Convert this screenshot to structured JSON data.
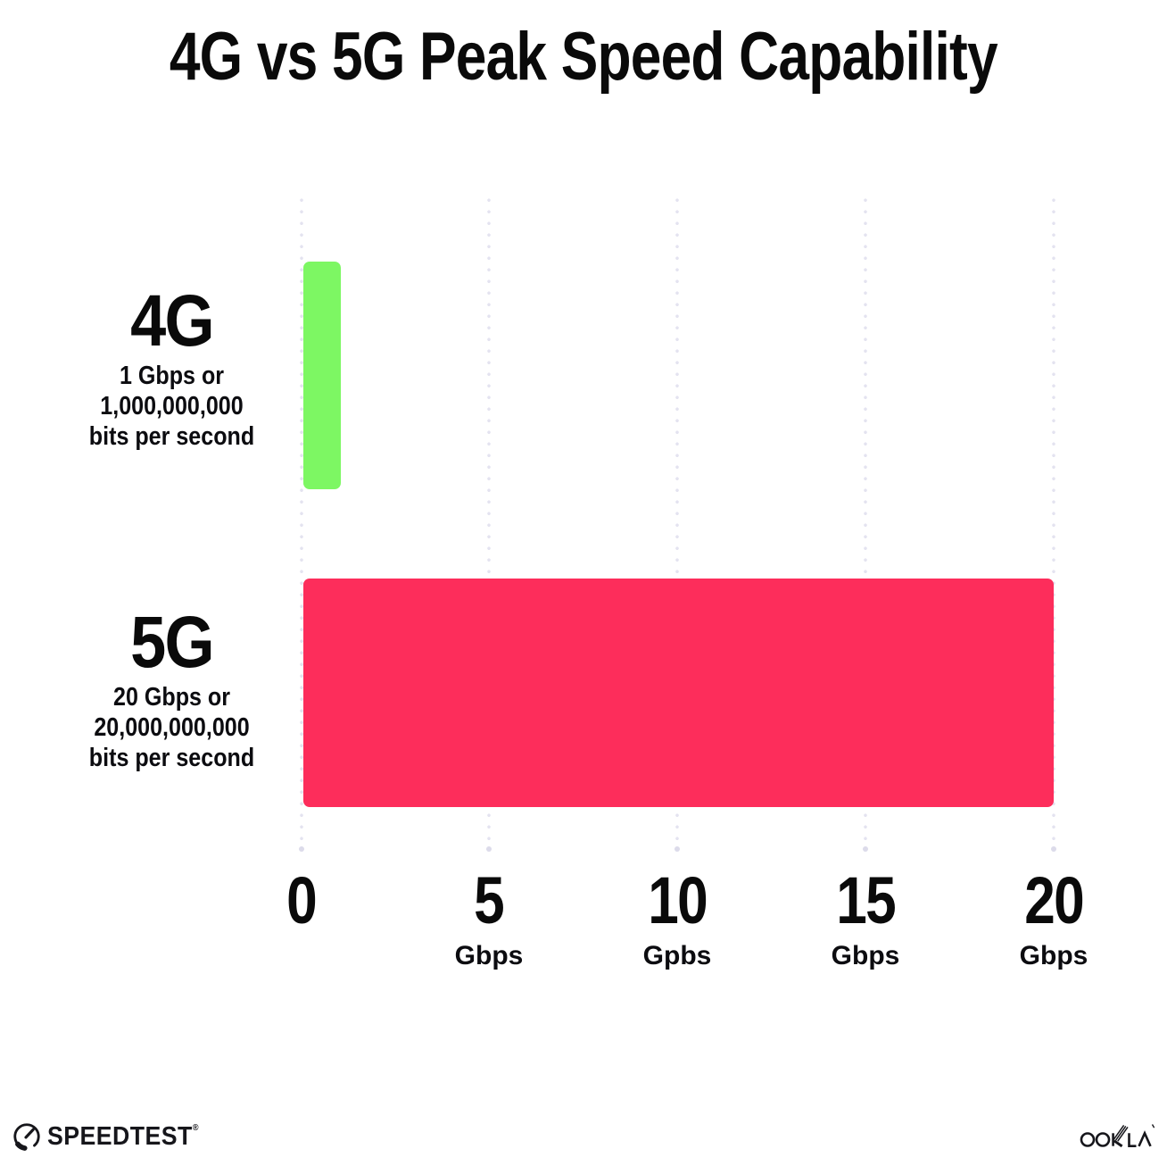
{
  "title": "4G vs 5G Peak Speed Capability",
  "chart_data": {
    "type": "bar",
    "orientation": "horizontal",
    "title": "4G vs 5G Peak Speed Capability",
    "categories": [
      "4G",
      "5G"
    ],
    "values": [
      1,
      20
    ],
    "value_unit": "Gbps",
    "series_colors": [
      "#7DF763",
      "#FD2D5B"
    ],
    "xlim": [
      0,
      20
    ],
    "grid": "vertical dotted gridlines at 0, 5, 10, 15, 20",
    "legend": "none",
    "x_ticks": [
      {
        "value": 0,
        "label": "0",
        "unit": ""
      },
      {
        "value": 5,
        "label": "5",
        "unit": "Gbps"
      },
      {
        "value": 10,
        "label": "10",
        "unit": "Gpbs"
      },
      {
        "value": 15,
        "label": "15",
        "unit": "Gbps"
      },
      {
        "value": 20,
        "label": "20",
        "unit": "Gbps"
      }
    ],
    "row_annotations": [
      {
        "category": "4G",
        "lines": [
          "1 Gbps or",
          "1,000,000,000",
          "bits per second"
        ]
      },
      {
        "category": "5G",
        "lines": [
          "20 Gbps or",
          "20,000,000,000",
          "bits per second"
        ]
      }
    ]
  },
  "footer": {
    "speedtest_label": "SPEEDTEST",
    "speedtest_mark": "®",
    "ookla_label": "OOKLA"
  },
  "colors": {
    "background": "#FFFFFF",
    "text": "#0C0C10",
    "bar_4g": "#7DF763",
    "bar_5g": "#FD2D5B",
    "gridline": "#E4E3F0"
  }
}
